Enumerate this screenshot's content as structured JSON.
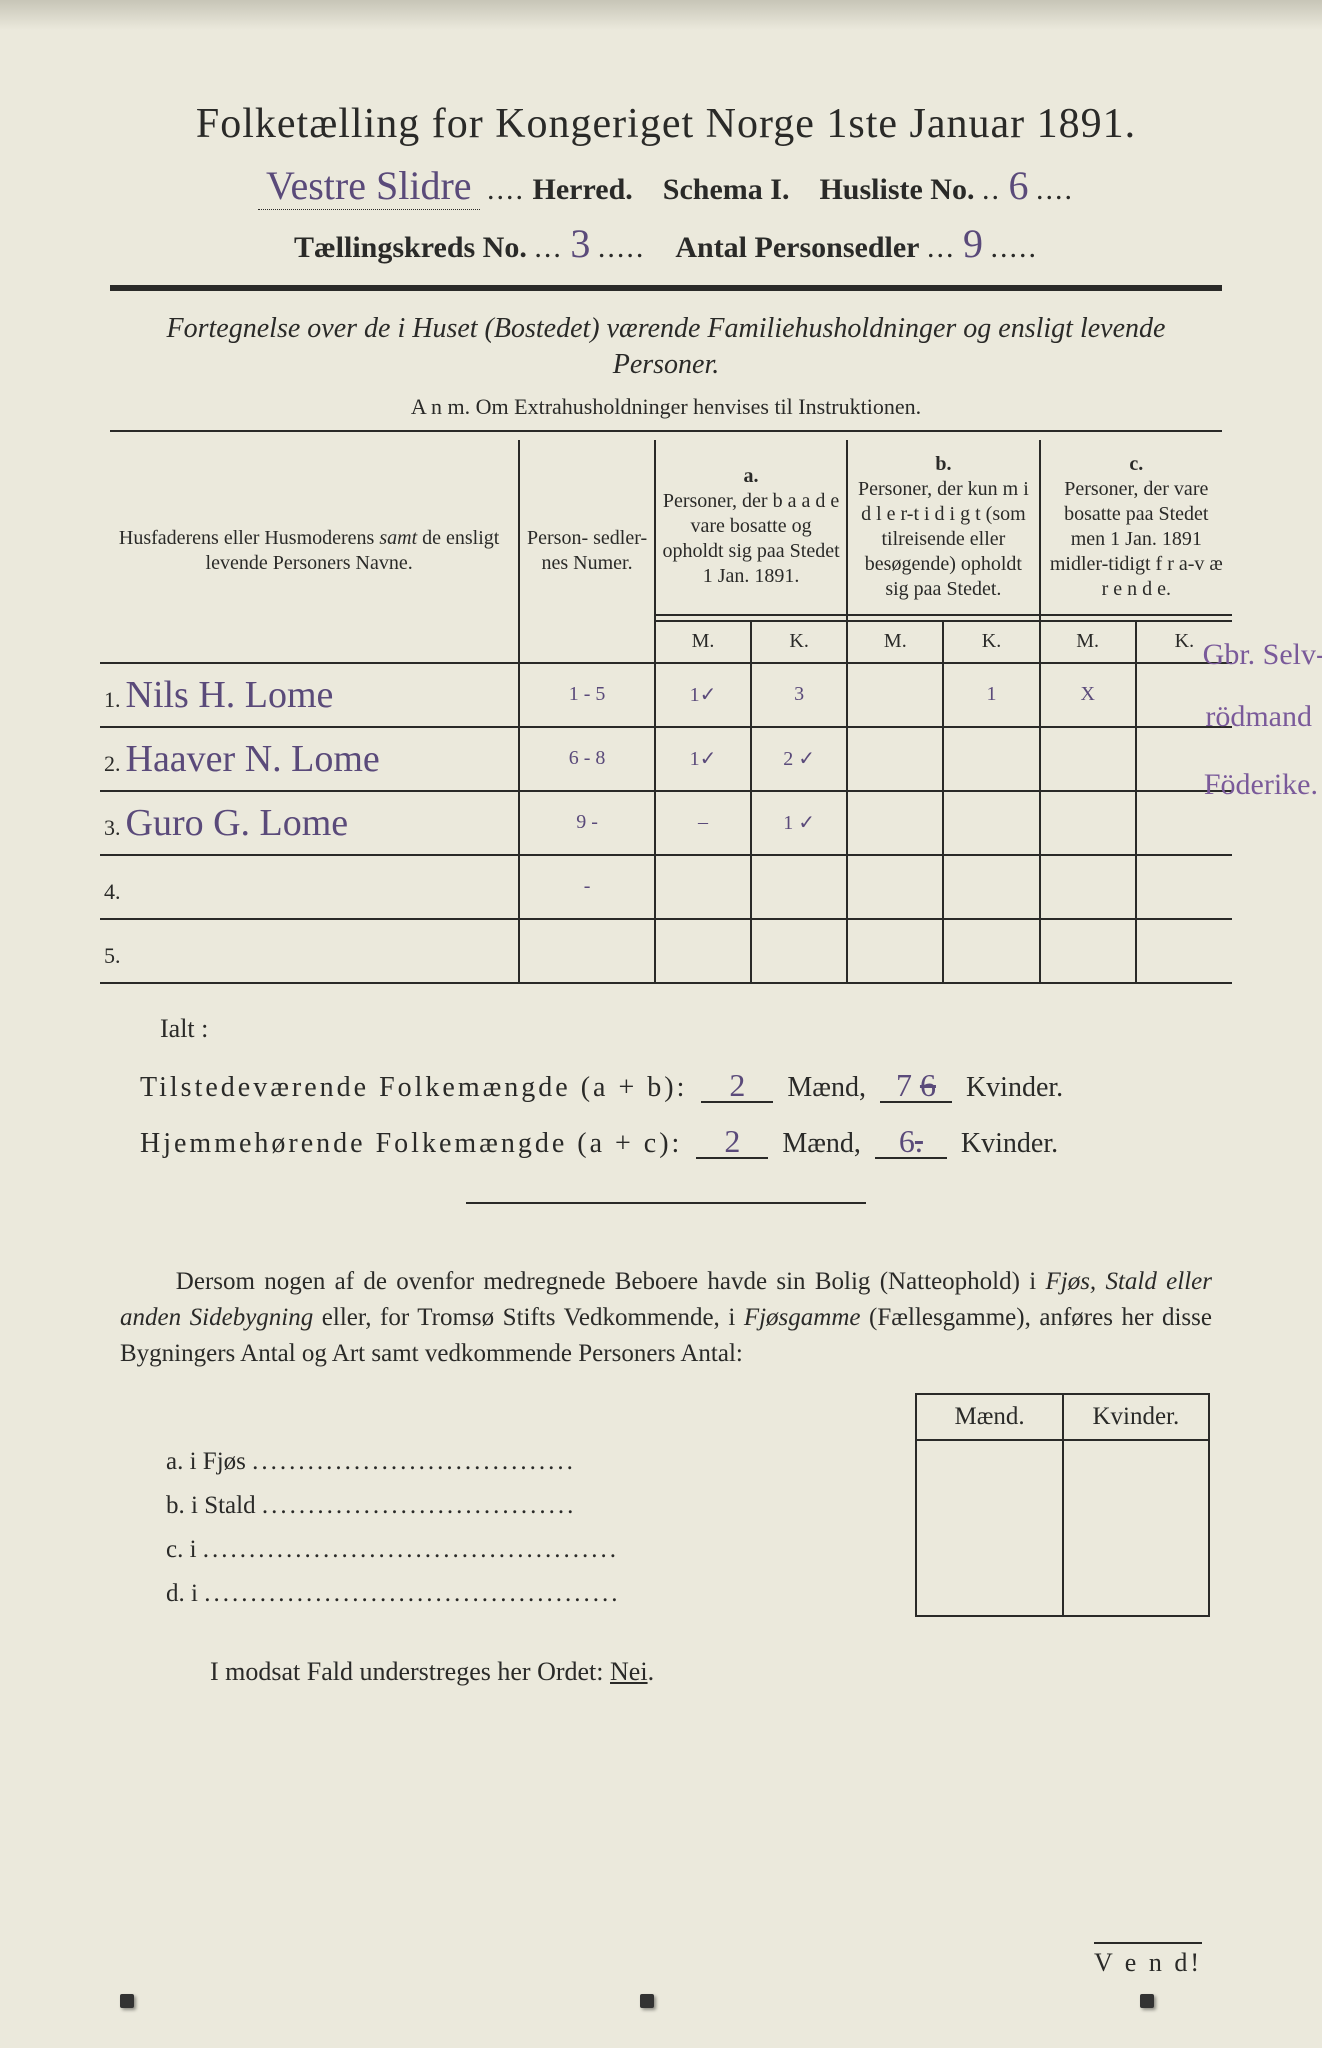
{
  "title": "Folketælling for Kongeriget Norge 1ste Januar 1891.",
  "header": {
    "herred_hw": "Vestre Slidre",
    "herred_label": "Herred.",
    "schema_label": "Schema I.",
    "husliste_label": "Husliste No.",
    "husliste_no": "6",
    "kreds_label": "Tællingskreds No.",
    "kreds_no": "3",
    "antal_label": "Antal Personsedler",
    "antal_no": "9"
  },
  "subtitle": "Fortegnelse over de i Huset (Bostedet) værende Familiehusholdninger og ensligt levende Personer.",
  "anm": "A n m.  Om Extrahusholdninger henvises til Instruktionen.",
  "columns": {
    "names": "Husfaderens eller Husmoderens samt de ensligt levende Personers Navne.",
    "numer": "Person-\nsedler-\nnes\nNumer.",
    "a_label": "a.",
    "a_text": "Personer, der b a a d e vare bosatte og opholdt sig paa Stedet 1 Jan. 1891.",
    "b_label": "b.",
    "b_text": "Personer, der kun m i d l e r-t i d i g t (som tilreisende eller besøgende) opholdt sig paa Stedet.",
    "c_label": "c.",
    "c_text": "Personer, der vare bosatte paa Stedet men 1 Jan. 1891 midler-tidigt f r a-v æ r e n d e.",
    "M": "M.",
    "K": "K."
  },
  "rows": [
    {
      "n": "1.",
      "name": "Nils H. Lome",
      "num": "1 - 5",
      "aM": "1✓",
      "aK": "3",
      "bM": "",
      "bK": "1",
      "cM": "X",
      "cK": ""
    },
    {
      "n": "2.",
      "name": "Haaver N. Lome",
      "num": "6 - 8",
      "aM": "1✓",
      "aK": "2 ✓",
      "bM": "",
      "bK": "",
      "cM": "",
      "cK": ""
    },
    {
      "n": "3.",
      "name": "Guro G. Lome",
      "num": "9 -",
      "aM": "–",
      "aK": "1 ✓",
      "bM": "",
      "bK": "",
      "cM": "",
      "cK": ""
    },
    {
      "n": "4.",
      "name": "",
      "num": "-",
      "aM": "",
      "aK": "",
      "bM": "",
      "bK": "",
      "cM": "",
      "cK": ""
    },
    {
      "n": "5.",
      "name": "",
      "num": "",
      "aM": "",
      "aK": "",
      "bM": "",
      "bK": "",
      "cM": "",
      "cK": ""
    }
  ],
  "margin_notes": {
    "r1": "Gbr. Selv-",
    "r2": "rödmand",
    "r3": "Föderike."
  },
  "ialt": "Ialt :",
  "totals": {
    "line1_a": "Tilstedeværende Folkemængde (a + b):",
    "line1_m": "2",
    "line1_k": "7",
    "line1_k_strike": "6",
    "line2_a": "Hjemmehørende Folkemængde (a + c):",
    "line2_m": "2",
    "line2_k": "6",
    "maend": "Mænd,",
    "kvinder": "Kvinder."
  },
  "para": "Dersom nogen af de ovenfor medregnede Beboere havde sin Bolig (Natteophold) i Fjøs, Stald eller anden Sidebygning eller, for Tromsø Stifts Vedkommende, i Fjøsgamme (Fællesgamme), anføres her disse Bygningers Antal og Art samt vedkommende Personers Antal:",
  "side": {
    "maend": "Mænd.",
    "kvinder": "Kvinder.",
    "rows": [
      {
        "l": "a.  i      Fjøs"
      },
      {
        "l": "b.  i      Stald"
      },
      {
        "l": "c.  i"
      },
      {
        "l": "d.  i"
      }
    ]
  },
  "nei": "I modsat Fald understreges her Ordet: Nei.",
  "vend": "V e n d!",
  "colors": {
    "paper": "#ebe9dc",
    "ink": "#2a2a28",
    "handwriting": "#5a4a7a"
  }
}
